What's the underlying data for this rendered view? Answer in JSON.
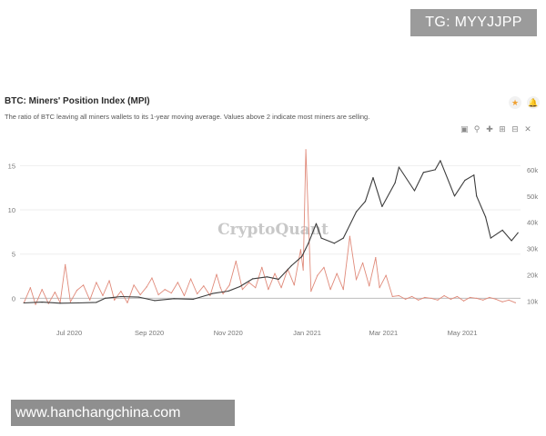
{
  "overlay": {
    "top_right": "TG: MYYJJPP",
    "bottom_left": "www.hanchangchina.com"
  },
  "header": {
    "title": "BTC: Miners' Position Index (MPI)",
    "subtitle": "The ratio of BTC leaving all miners wallets to its 1-year moving average. Values above 2 indicate most miners are selling.",
    "star_glyph": "★",
    "bell_glyph": "🔔"
  },
  "toolbar": {
    "icons": [
      "camera-icon",
      "zoom-icon",
      "pan-icon",
      "zoom-in-icon",
      "zoom-out-icon",
      "reset-icon"
    ]
  },
  "chart_data": {
    "type": "line",
    "watermark": "CryptoQuant",
    "x_ticks": [
      "Jul 2020",
      "Sep 2020",
      "Nov 2020",
      "Jan 2021",
      "Mar 2021",
      "May 2021"
    ],
    "x_tick_dates": [
      "2020-07-01",
      "2020-09-01",
      "2020-11-01",
      "2021-01-01",
      "2021-03-01",
      "2021-05-01"
    ],
    "x_range": [
      "2020-05-24",
      "2021-06-15"
    ],
    "y_left": {
      "range": [
        -1.5,
        17.5
      ],
      "ticks": [
        0,
        5,
        10,
        15
      ]
    },
    "y_right": {
      "range": [
        6000,
        70000
      ],
      "ticks": [
        10000,
        20000,
        30000,
        40000,
        50000,
        60000
      ],
      "tick_labels": [
        "10k",
        "20k",
        "30k",
        "40k",
        "50k",
        "60k"
      ]
    },
    "grid": "horizontal",
    "series": [
      {
        "axis": "left",
        "color": "#e08a7a",
        "x": [
          "2020-05-27",
          "2020-06-01",
          "2020-06-05",
          "2020-06-10",
          "2020-06-15",
          "2020-06-20",
          "2020-06-24",
          "2020-06-28",
          "2020-07-02",
          "2020-07-07",
          "2020-07-12",
          "2020-07-17",
          "2020-07-22",
          "2020-07-27",
          "2020-08-01",
          "2020-08-05",
          "2020-08-10",
          "2020-08-15",
          "2020-08-20",
          "2020-08-25",
          "2020-08-30",
          "2020-09-03",
          "2020-09-08",
          "2020-09-13",
          "2020-09-18",
          "2020-09-23",
          "2020-09-28",
          "2020-10-03",
          "2020-10-08",
          "2020-10-13",
          "2020-10-18",
          "2020-10-23",
          "2020-10-26",
          "2020-10-28",
          "2020-11-02",
          "2020-11-07",
          "2020-11-12",
          "2020-11-17",
          "2020-11-22",
          "2020-11-27",
          "2020-12-02",
          "2020-12-07",
          "2020-12-12",
          "2020-12-17",
          "2020-12-22",
          "2020-12-27",
          "2020-12-29",
          "2020-12-31",
          "2021-01-04",
          "2021-01-09",
          "2021-01-14",
          "2021-01-19",
          "2021-01-24",
          "2021-01-29",
          "2021-02-03",
          "2021-02-08",
          "2021-02-13",
          "2021-02-18",
          "2021-02-23",
          "2021-02-26",
          "2021-03-03",
          "2021-03-08",
          "2021-03-13",
          "2021-03-18",
          "2021-03-23",
          "2021-03-28",
          "2021-04-02",
          "2021-04-07",
          "2021-04-12",
          "2021-04-17",
          "2021-04-22",
          "2021-04-27",
          "2021-05-02",
          "2021-05-07",
          "2021-05-12",
          "2021-05-17",
          "2021-05-22",
          "2021-05-27",
          "2021-06-01",
          "2021-06-06",
          "2021-06-11"
        ],
        "values": [
          -0.5,
          1.2,
          -0.7,
          1.0,
          -0.6,
          0.7,
          -0.5,
          3.8,
          -0.4,
          0.9,
          1.5,
          -0.2,
          1.8,
          0.3,
          2.0,
          -0.2,
          0.8,
          -0.5,
          1.5,
          0.4,
          1.3,
          2.3,
          0.4,
          1.0,
          0.6,
          1.8,
          0.3,
          2.2,
          0.5,
          1.4,
          0.3,
          2.7,
          1.2,
          0.5,
          1.5,
          4.2,
          1.0,
          1.8,
          1.2,
          3.5,
          1.0,
          2.8,
          1.2,
          3.3,
          1.5,
          5.5,
          3.2,
          16.8,
          0.8,
          2.6,
          3.5,
          1.0,
          2.8,
          1.0,
          7.0,
          2.1,
          4.0,
          1.4,
          4.6,
          1.2,
          2.6,
          0.2,
          0.3,
          -0.1,
          0.2,
          -0.2,
          0.1,
          0.0,
          -0.2,
          0.3,
          -0.1,
          0.2,
          -0.3,
          0.1,
          0.0,
          -0.2,
          0.1,
          -0.1,
          -0.4,
          -0.2,
          -0.5
        ]
      },
      {
        "axis": "right",
        "color": "#3c3c3c",
        "x": [
          "2020-05-27",
          "2020-06-10",
          "2020-06-24",
          "2020-07-08",
          "2020-07-22",
          "2020-07-29",
          "2020-08-10",
          "2020-08-24",
          "2020-09-05",
          "2020-09-20",
          "2020-10-05",
          "2020-10-20",
          "2020-11-01",
          "2020-11-10",
          "2020-11-20",
          "2020-12-01",
          "2020-12-10",
          "2020-12-20",
          "2020-12-28",
          "2021-01-02",
          "2021-01-08",
          "2021-01-12",
          "2021-01-22",
          "2021-01-29",
          "2021-02-08",
          "2021-02-15",
          "2021-02-21",
          "2021-02-28",
          "2021-03-10",
          "2021-03-13",
          "2021-03-25",
          "2021-04-01",
          "2021-04-10",
          "2021-04-14",
          "2021-04-25",
          "2021-05-03",
          "2021-05-10",
          "2021-05-12",
          "2021-05-19",
          "2021-05-23",
          "2021-06-01",
          "2021-06-08",
          "2021-06-13"
        ],
        "values": [
          9300,
          9600,
          9200,
          9300,
          9500,
          11100,
          11700,
          11500,
          10200,
          10900,
          10700,
          12900,
          13800,
          15500,
          18500,
          19200,
          18300,
          23500,
          27000,
          32000,
          39500,
          34000,
          32000,
          34000,
          44000,
          48000,
          57000,
          46000,
          55000,
          61000,
          52000,
          59000,
          60000,
          63500,
          50000,
          56000,
          58000,
          50000,
          42000,
          34000,
          37000,
          33000,
          36000
        ]
      }
    ]
  }
}
